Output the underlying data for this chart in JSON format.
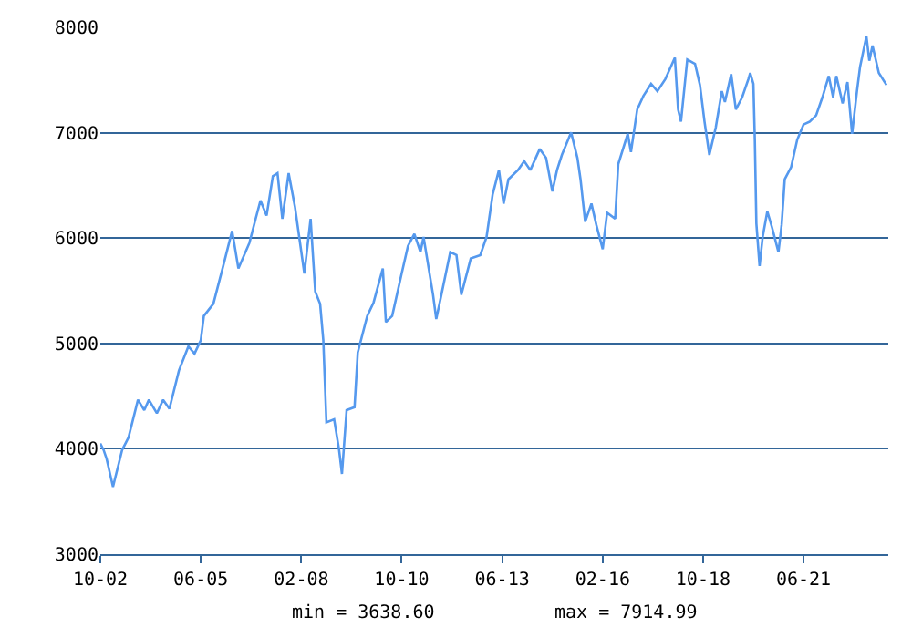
{
  "chart_data": {
    "type": "line",
    "x": [
      "2002-10",
      "2002-11",
      "2002-12",
      "2003-02",
      "2003-03",
      "2003-05",
      "2003-07",
      "2003-10",
      "2003-12",
      "2004-01-15",
      "2004-04",
      "2004-06",
      "2004-08",
      "2004-11",
      "2005-02",
      "2005-04",
      "2005-06",
      "2005-07",
      "2005-10",
      "2006-01",
      "2006-04",
      "2006-06",
      "2006-09-15",
      "2006-11-15",
      "2007-01",
      "2007-03",
      "2007-05",
      "2007-06-15",
      "2007-08",
      "2007-10",
      "2007-12",
      "2008-03",
      "2008-05",
      "2008-06-15",
      "2008-08",
      "2008-09",
      "2008-10",
      "2008-12-15",
      "2009-02",
      "2009-03",
      "2009-04-15",
      "2009-07",
      "2009-08",
      "2009-11",
      "2010-01",
      "2010-04",
      "2010-05",
      "2010-07",
      "2010-10",
      "2010-12",
      "2011-02",
      "2011-04",
      "2011-05",
      "2011-08",
      "2011-09",
      "2011-10-15",
      "2012-01-15",
      "2012-03-15",
      "2012-05",
      "2012-08",
      "2012-11",
      "2013-01",
      "2013-03",
      "2013-05",
      "2013-06-15",
      "2013-08",
      "2013-11",
      "2014-01",
      "2014-03",
      "2014-06",
      "2014-08",
      "2014-10",
      "2014-11-15",
      "2015-01",
      "2015-04",
      "2015-06",
      "2015-07",
      "2015-08-15",
      "2015-10-15",
      "2015-12",
      "2016-02",
      "2016-03-15",
      "2016-06",
      "2016-07",
      "2016-10",
      "2016-11",
      "2017-01",
      "2017-03",
      "2017-05-15",
      "2017-07-15",
      "2017-10",
      "2018-01",
      "2018-02",
      "2018-03",
      "2018-05",
      "2018-07-15",
      "2018-09",
      "2018-10-15",
      "2018-12",
      "2019-02",
      "2019-04",
      "2019-05",
      "2019-07",
      "2019-08-15",
      "2019-10-15",
      "2019-12-15",
      "2020-01",
      "2020-02",
      "2020-02-15",
      "2020-03",
      "2020-04",
      "2020-05",
      "2020-06-15",
      "2020-08",
      "2020-10",
      "2020-11",
      "2020-12",
      "2021-02",
      "2021-04",
      "2021-06",
      "2021-08",
      "2021-10",
      "2021-12",
      "2022-02",
      "2022-03-15",
      "2022-04-15",
      "2022-06-15",
      "2022-08",
      "2022-09-15",
      "2022-11",
      "2022-12",
      "2023-02",
      "2023-03",
      "2023-04",
      "2023-06",
      "2023-08-15"
    ],
    "series": [
      {
        "color": "#5599ee",
        "values": [
          4050,
          3991,
          3905,
          3638.6,
          3750,
          3990,
          4107,
          4465,
          4367,
          4465,
          4337,
          4465,
          4380,
          4742,
          4972,
          4903,
          5030,
          5261,
          5376,
          5722,
          6068,
          5711,
          5953,
          6183,
          6356,
          6213,
          6587,
          6616,
          6183,
          6616,
          6299,
          5664,
          6183,
          5491,
          5376,
          5030,
          4251,
          4280,
          3991,
          3761,
          4367,
          4395,
          4915,
          5261,
          5388,
          5711,
          5203,
          5261,
          5664,
          5924,
          6040,
          5867,
          6011,
          5462,
          5232,
          5434,
          5867,
          5838,
          5462,
          5808,
          5838,
          6011,
          6414,
          6645,
          6327,
          6558,
          6645,
          6731,
          6645,
          6846,
          6760,
          6443,
          6645,
          6789,
          7002,
          6760,
          6558,
          6154,
          6327,
          6126,
          5895,
          6240,
          6183,
          6702,
          6990,
          6817,
          7221,
          7348,
          7464,
          7394,
          7510,
          7712,
          7221,
          7106,
          7694,
          7654,
          7452,
          7106,
          6789,
          7048,
          7394,
          7291,
          7556,
          7221,
          7336,
          7510,
          7567,
          7464,
          6933,
          6137,
          5734,
          6011,
          6253,
          6097,
          5867,
          6126,
          6558,
          6673,
          6933,
          7077,
          7106,
          7164,
          7336,
          7538,
          7336,
          7538,
          7279,
          7481,
          6990,
          7394,
          7625,
          7914.99,
          7683,
          7827,
          7567,
          7452
        ]
      }
    ],
    "xlim": [
      "2002-10",
      "2023-09"
    ],
    "xticks": [
      {
        "value": "2002-10",
        "label": "10-02"
      },
      {
        "value": "2005-06",
        "label": "06-05"
      },
      {
        "value": "2008-02",
        "label": "02-08"
      },
      {
        "value": "2010-10",
        "label": "10-10"
      },
      {
        "value": "2013-06",
        "label": "06-13"
      },
      {
        "value": "2016-02",
        "label": "02-16"
      },
      {
        "value": "2018-10",
        "label": "10-18"
      },
      {
        "value": "2021-06",
        "label": "06-21"
      }
    ],
    "ylim": [
      3000,
      8000
    ],
    "yticks": [
      3000,
      4000,
      5000,
      6000,
      7000,
      8000
    ],
    "grid": "y",
    "annotations": [
      "min = 3638.60",
      "max = 7914.99"
    ]
  }
}
